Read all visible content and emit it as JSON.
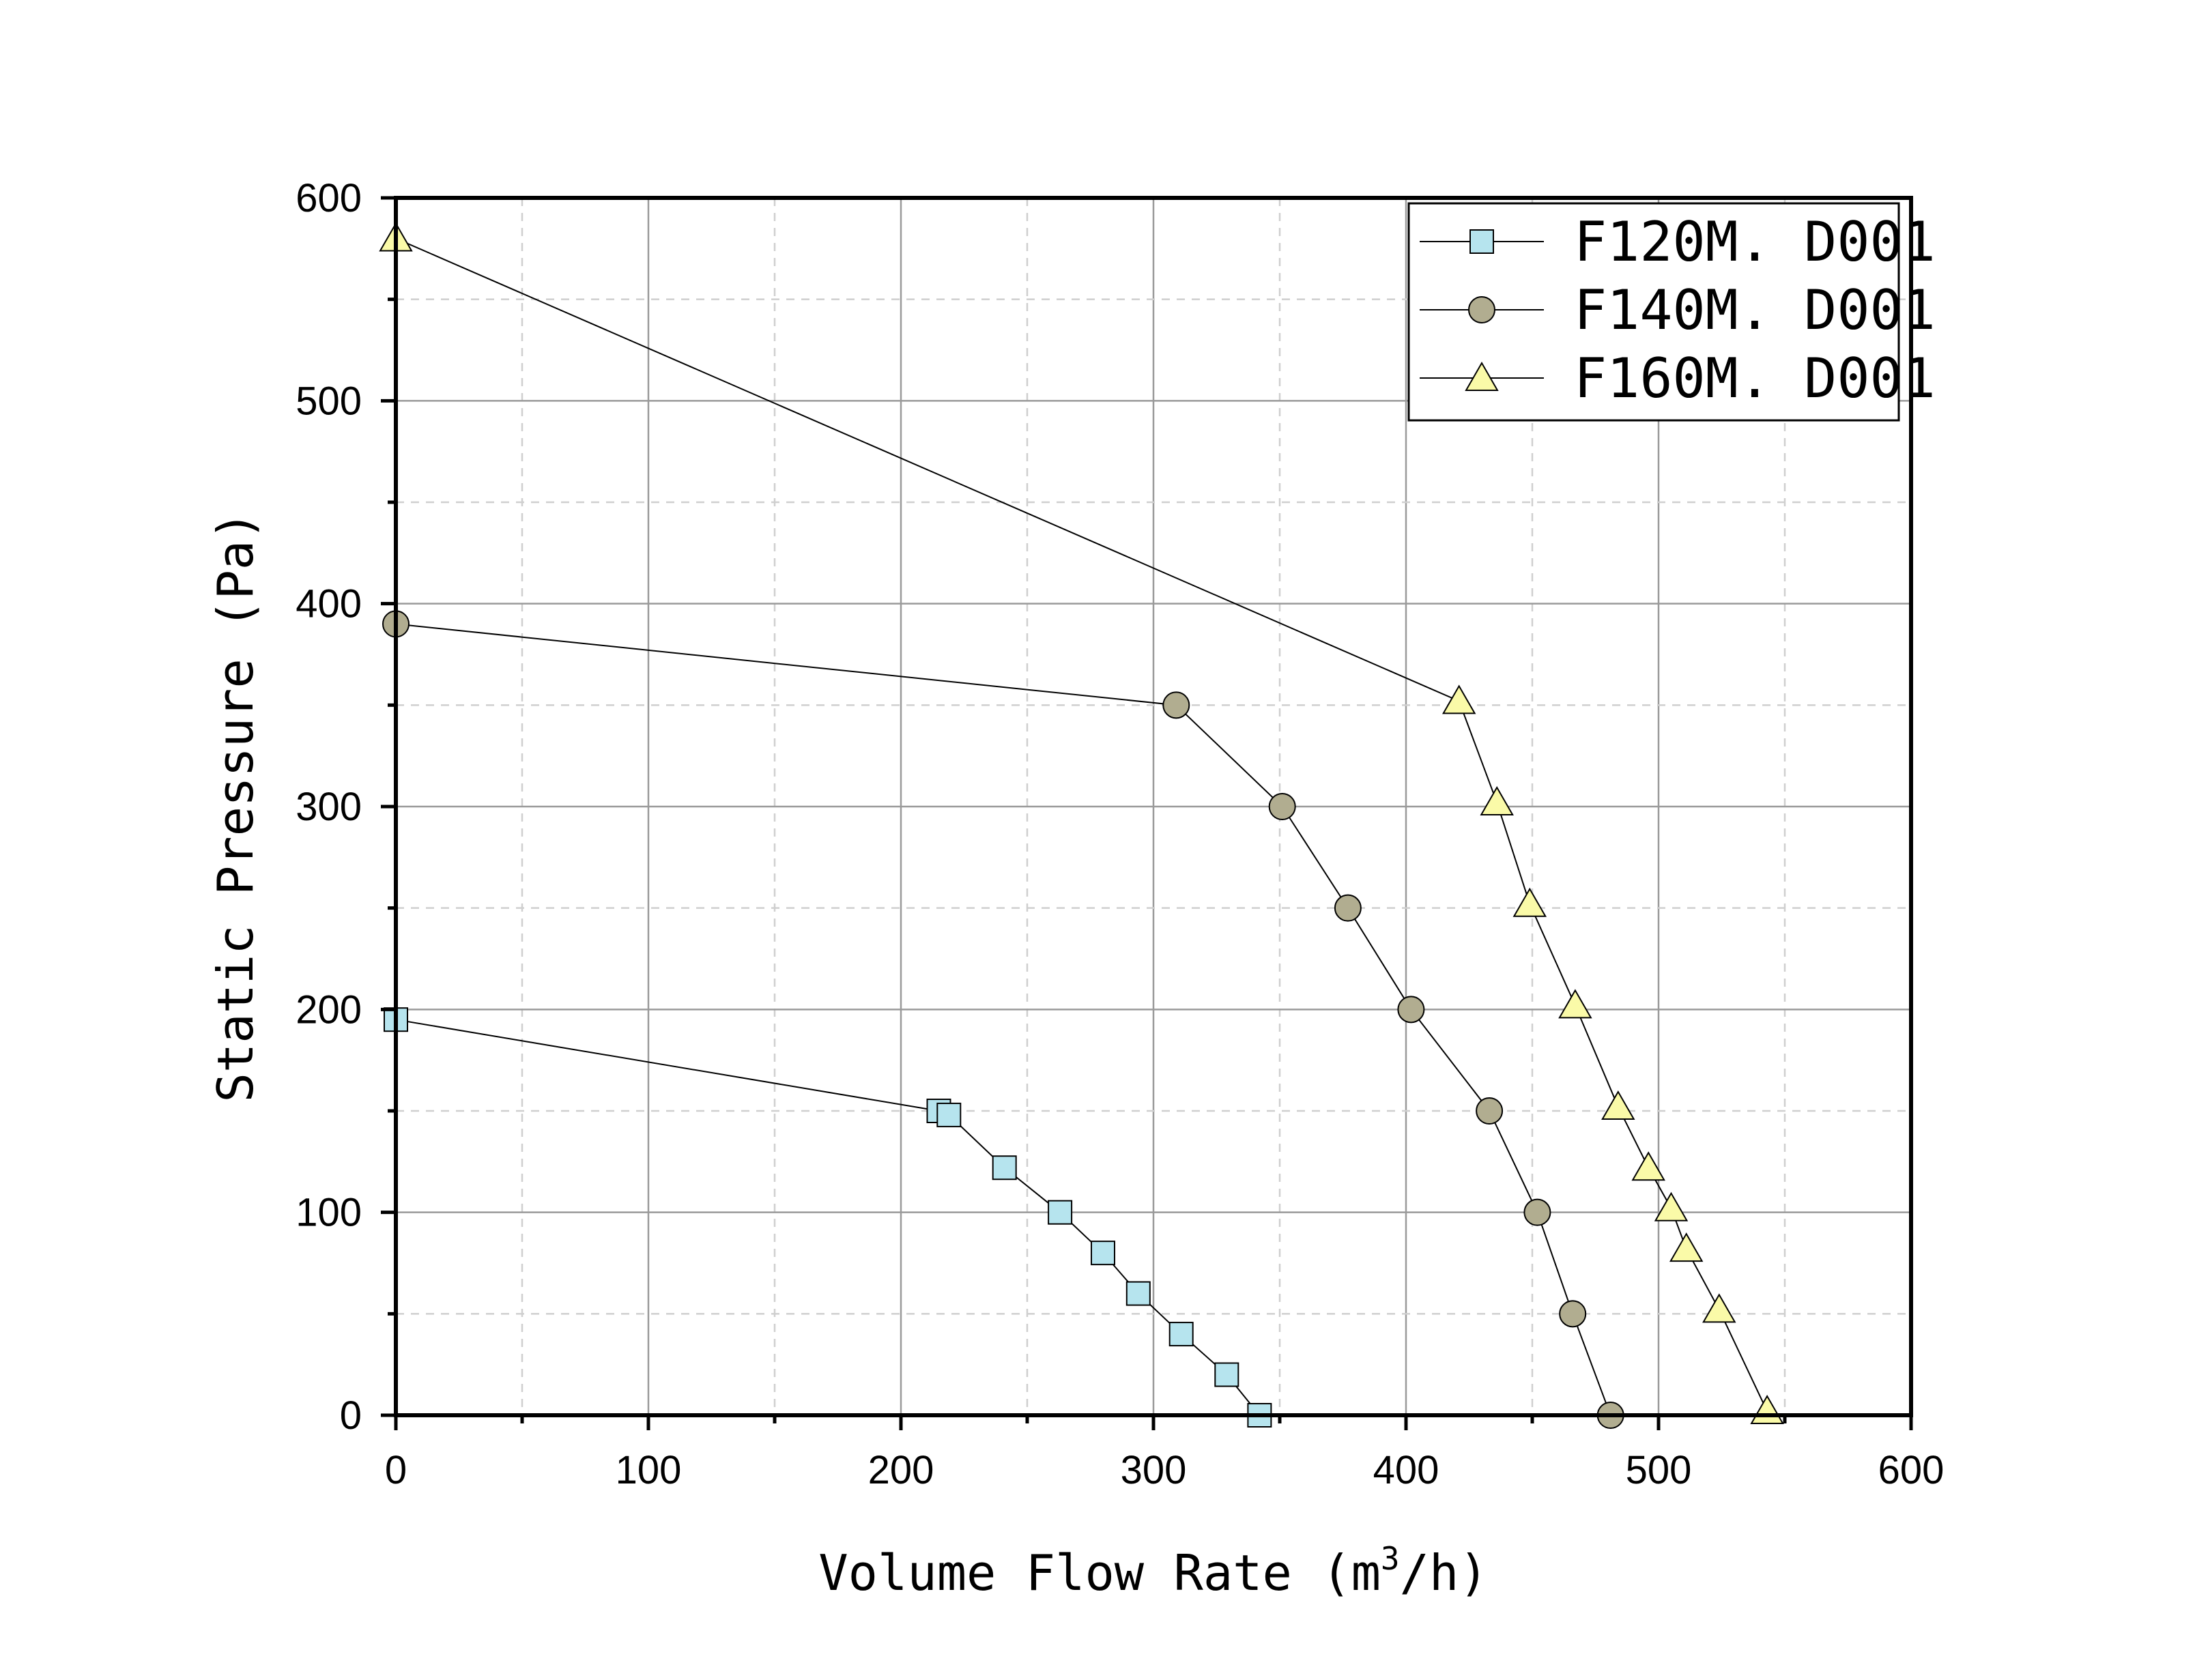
{
  "chart_data": {
    "type": "line",
    "title": "",
    "xlabel_prefix": "Volume Flow Rate (m",
    "xlabel_sup": "3",
    "xlabel_suffix": "/h)",
    "ylabel": "Static Pressure (Pa)",
    "xlim": [
      0,
      600
    ],
    "ylim": [
      0,
      600
    ],
    "x_ticks": [
      0,
      100,
      200,
      300,
      400,
      500,
      600
    ],
    "y_ticks": [
      0,
      100,
      200,
      300,
      400,
      500,
      600
    ],
    "x_tick_labels": [
      "0",
      "100",
      "200",
      "300",
      "400",
      "500",
      "600"
    ],
    "y_tick_labels": [
      "0",
      "100",
      "200",
      "300",
      "400",
      "500",
      "600"
    ],
    "grid": true,
    "legend_position": "top-right",
    "series": [
      {
        "name": "F120M.D001",
        "legend_label": "F120M. D001",
        "marker": "square",
        "color": "#b6e4ee",
        "x": [
          0,
          215,
          219,
          241,
          263,
          280,
          294,
          311,
          329,
          342
        ],
        "y": [
          195,
          150,
          148,
          122,
          100,
          80,
          60,
          40,
          20,
          0
        ]
      },
      {
        "name": "F140M.D001",
        "legend_label": "F140M. D001",
        "marker": "circle",
        "color": "#b1ad90",
        "x": [
          0,
          309,
          351,
          377,
          402,
          433,
          452,
          466,
          481
        ],
        "y": [
          390,
          350,
          300,
          250,
          200,
          150,
          100,
          50,
          0
        ]
      },
      {
        "name": "F160M.D001",
        "legend_label": "F160M. D001",
        "marker": "triangle",
        "color": "#fafaa8",
        "x": [
          0,
          421,
          436,
          449,
          467,
          484,
          496,
          505,
          511,
          524,
          543
        ],
        "y": [
          580,
          352,
          302,
          252,
          202,
          152,
          122,
          102,
          82,
          52,
          2
        ]
      }
    ]
  }
}
